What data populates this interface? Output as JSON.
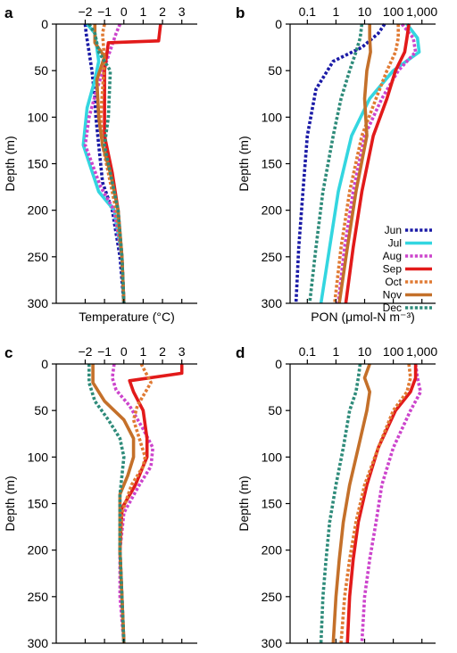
{
  "chart_data": [
    {
      "panel": "a",
      "type": "line",
      "xlabel": "Temperature (°C)",
      "ylabel": "Depth (m)",
      "xscale": "linear",
      "xlim": [
        -3.5,
        3.8
      ],
      "ylim": [
        0,
        300
      ],
      "xticks": [
        -2,
        -1,
        0,
        1,
        2,
        3
      ],
      "xtick_labels": [
        "−2",
        "−1",
        "0",
        "1",
        "2",
        "3"
      ],
      "yticks": [
        0,
        50,
        100,
        150,
        200,
        250,
        300
      ],
      "series": [
        {
          "name": "Jun",
          "color": "#1a1aa6",
          "dash": "dot",
          "x": [
            -2.0,
            -1.95,
            -1.8,
            -1.65,
            -1.5,
            -1.45,
            -1.1,
            -0.6,
            -0.2,
            0.0
          ],
          "y": [
            0,
            10,
            30,
            50,
            80,
            100,
            170,
            200,
            250,
            300
          ]
        },
        {
          "name": "Jul",
          "color": "#33d6e0",
          "dash": "solid",
          "x": [
            -1.9,
            -1.5,
            -1.3,
            -1.5,
            -1.9,
            -2.1,
            -1.3,
            -0.5,
            -0.1,
            0.0
          ],
          "y": [
            0,
            10,
            40,
            60,
            90,
            130,
            180,
            200,
            250,
            300
          ]
        },
        {
          "name": "Aug",
          "color": "#cc44cc",
          "dash": "dot",
          "x": [
            -0.2,
            -0.4,
            -0.9,
            -1.4,
            -1.8,
            -2.0,
            -1.2,
            -0.5,
            -0.1,
            0.0
          ],
          "y": [
            0,
            10,
            40,
            70,
            100,
            130,
            175,
            200,
            250,
            300
          ]
        },
        {
          "name": "Sep",
          "color": "#e21a1a",
          "dash": "solid",
          "x": [
            1.9,
            1.8,
            -0.8,
            -1.0,
            -1.0,
            -1.0,
            -0.6,
            -0.3,
            -0.1,
            0.0
          ],
          "y": [
            0,
            18,
            20,
            50,
            90,
            120,
            160,
            200,
            250,
            300
          ]
        },
        {
          "name": "Oct",
          "color": "#e07a33",
          "dash": "dot",
          "x": [
            -1.0,
            -1.1,
            -1.0,
            -1.1,
            -1.2,
            -1.1,
            -0.8,
            -0.4,
            -0.1,
            0.0
          ],
          "y": [
            0,
            10,
            40,
            70,
            100,
            130,
            160,
            200,
            250,
            300
          ]
        },
        {
          "name": "Nov",
          "color": "#c4702a",
          "dash": "solid",
          "x": [
            -1.5,
            -1.5,
            -1.0,
            -1.4,
            -1.3,
            -1.1,
            -0.7,
            -0.3,
            -0.1,
            0.0
          ],
          "y": [
            0,
            20,
            35,
            60,
            100,
            130,
            160,
            200,
            250,
            300
          ]
        },
        {
          "name": "Dec",
          "color": "#2e8b7a",
          "dash": "dot",
          "x": [
            -1.8,
            -1.5,
            -1.3,
            -0.7,
            -0.8,
            -1.0,
            -0.7,
            -0.3,
            -0.1,
            0.0
          ],
          "y": [
            0,
            10,
            30,
            50,
            100,
            130,
            160,
            200,
            250,
            300
          ]
        }
      ]
    },
    {
      "panel": "b",
      "type": "line",
      "xlabel": "PON (μmol-N m⁻³)",
      "ylabel": "Depth (m)",
      "xscale": "log",
      "xlim": [
        0.025,
        3000
      ],
      "ylim": [
        0,
        300
      ],
      "xticks": [
        0.1,
        1,
        10,
        100,
        1000
      ],
      "xtick_labels": [
        "0.1",
        "1",
        "10",
        "100",
        "1,000"
      ],
      "yticks": [
        0,
        50,
        100,
        150,
        200,
        250,
        300
      ],
      "legend": {
        "placement": "right",
        "entries": [
          "Jun",
          "Jul",
          "Aug",
          "Sep",
          "Oct",
          "Nov",
          "Dec"
        ]
      },
      "series": [
        {
          "name": "Jun",
          "color": "#1a1aa6",
          "dash": "dot",
          "x": [
            50,
            30,
            8,
            0.8,
            0.2,
            0.1,
            0.07,
            0.05,
            0.04
          ],
          "y": [
            0,
            10,
            25,
            40,
            70,
            120,
            180,
            240,
            300
          ]
        },
        {
          "name": "Jul",
          "color": "#33d6e0",
          "dash": "solid",
          "x": [
            300,
            700,
            800,
            100,
            15,
            3.5,
            1.2,
            0.6,
            0.3
          ],
          "y": [
            0,
            15,
            30,
            50,
            80,
            120,
            180,
            240,
            300
          ]
        },
        {
          "name": "Aug",
          "color": "#cc44cc",
          "dash": "dot",
          "x": [
            200,
            500,
            600,
            150,
            40,
            10,
            4,
            2,
            1.2
          ],
          "y": [
            0,
            15,
            30,
            50,
            80,
            120,
            180,
            240,
            300
          ]
        },
        {
          "name": "Sep",
          "color": "#e21a1a",
          "dash": "solid",
          "x": [
            350,
            300,
            250,
            120,
            60,
            20,
            8,
            4,
            2.2
          ],
          "y": [
            0,
            15,
            30,
            50,
            80,
            120,
            180,
            240,
            300
          ]
        },
        {
          "name": "Oct",
          "color": "#e07a33",
          "dash": "dot",
          "x": [
            150,
            150,
            120,
            60,
            25,
            8,
            3,
            1.5,
            0.9
          ],
          "y": [
            0,
            15,
            30,
            50,
            80,
            120,
            180,
            240,
            300
          ]
        },
        {
          "name": "Nov",
          "color": "#c4702a",
          "dash": "solid",
          "x": [
            15,
            15,
            16,
            12,
            10,
            12,
            5,
            2.5,
            1.3
          ],
          "y": [
            0,
            15,
            30,
            50,
            80,
            120,
            180,
            240,
            300
          ]
        },
        {
          "name": "Dec",
          "color": "#2e8b7a",
          "dash": "dot",
          "x": [
            8,
            7,
            5,
            3,
            1.5,
            0.8,
            0.35,
            0.2,
            0.12
          ],
          "y": [
            0,
            15,
            30,
            50,
            80,
            120,
            180,
            240,
            300
          ]
        }
      ]
    },
    {
      "panel": "c",
      "type": "line",
      "xlabel": "",
      "ylabel": "Depth (m)",
      "xscale": "linear",
      "xlim": [
        -3.5,
        3.8
      ],
      "ylim": [
        0,
        300
      ],
      "xticks": [
        -2,
        -1,
        0,
        1,
        2,
        3
      ],
      "xtick_labels": [
        "−2",
        "−1",
        "0",
        "1",
        "2",
        "3"
      ],
      "yticks": [
        0,
        50,
        100,
        150,
        200,
        250,
        300
      ],
      "series": [
        {
          "name": "Aug",
          "color": "#cc44cc",
          "dash": "dot",
          "x": [
            -0.5,
            -0.6,
            -0.4,
            0.3,
            1.0,
            1.5,
            1.4,
            0.8,
            0.0,
            -0.2,
            -0.2,
            0.0
          ],
          "y": [
            0,
            15,
            28,
            45,
            70,
            90,
            110,
            130,
            160,
            200,
            250,
            300
          ]
        },
        {
          "name": "Sep",
          "color": "#e21a1a",
          "dash": "solid",
          "x": [
            3.0,
            3.0,
            0.3,
            0.5,
            1.0,
            1.2,
            1.2,
            0.6,
            -0.1,
            -0.2,
            -0.1,
            0.0
          ],
          "y": [
            0,
            10,
            18,
            30,
            50,
            80,
            100,
            130,
            155,
            200,
            250,
            300
          ]
        },
        {
          "name": "Oct",
          "color": "#e07a33",
          "dash": "dot",
          "x": [
            0.9,
            1.4,
            0.7,
            0.5,
            0.8,
            1.1,
            1.0,
            0.4,
            -0.1,
            -0.2,
            -0.1,
            0.0
          ],
          "y": [
            0,
            20,
            45,
            60,
            80,
            100,
            110,
            130,
            160,
            200,
            250,
            300
          ]
        },
        {
          "name": "Nov",
          "color": "#c4702a",
          "dash": "solid",
          "x": [
            -1.6,
            -1.6,
            -1.0,
            0.0,
            0.5,
            0.5,
            0.2,
            -0.2,
            -0.2,
            -0.2,
            -0.1,
            0.0
          ],
          "y": [
            0,
            20,
            40,
            60,
            80,
            100,
            120,
            140,
            160,
            200,
            250,
            300
          ]
        },
        {
          "name": "Dec",
          "color": "#2e8b7a",
          "dash": "dot",
          "x": [
            -1.8,
            -1.8,
            -1.5,
            -0.8,
            -0.2,
            0.0,
            -0.1,
            -0.2,
            -0.2,
            -0.2,
            -0.1,
            0.0
          ],
          "y": [
            0,
            20,
            40,
            60,
            80,
            100,
            120,
            140,
            160,
            200,
            250,
            300
          ]
        }
      ]
    },
    {
      "panel": "d",
      "type": "line",
      "xlabel": "",
      "ylabel": "Depth (m)",
      "xscale": "log",
      "xlim": [
        0.025,
        3000
      ],
      "ylim": [
        0,
        300
      ],
      "xticks": [
        0.1,
        1,
        10,
        100,
        1000
      ],
      "xtick_labels": [
        "0.1",
        "1",
        "10",
        "100",
        "1,000"
      ],
      "yticks": [
        0,
        50,
        100,
        150,
        200,
        250,
        300
      ],
      "series": [
        {
          "name": "Aug",
          "color": "#cc44cc",
          "dash": "dot",
          "x": [
            600,
            700,
            900,
            400,
            100,
            40,
            25,
            15,
            10,
            8
          ],
          "y": [
            0,
            15,
            30,
            50,
            90,
            130,
            170,
            210,
            250,
            300
          ]
        },
        {
          "name": "Sep",
          "color": "#e21a1a",
          "dash": "solid",
          "x": [
            600,
            600,
            400,
            120,
            30,
            12,
            6,
            4,
            3,
            2.5
          ],
          "y": [
            0,
            15,
            30,
            50,
            90,
            130,
            170,
            210,
            250,
            300
          ]
        },
        {
          "name": "Oct",
          "color": "#e07a33",
          "dash": "dot",
          "x": [
            350,
            400,
            300,
            100,
            30,
            10,
            5,
            3,
            2,
            1.5
          ],
          "y": [
            0,
            15,
            30,
            50,
            90,
            130,
            170,
            210,
            250,
            300
          ]
        },
        {
          "name": "Nov",
          "color": "#c4702a",
          "dash": "solid",
          "x": [
            15,
            10,
            15,
            12,
            6,
            3,
            1.8,
            1.3,
            1.0,
            0.8
          ],
          "y": [
            0,
            15,
            30,
            50,
            90,
            130,
            170,
            210,
            250,
            300
          ]
        },
        {
          "name": "Dec",
          "color": "#2e8b7a",
          "dash": "dot",
          "x": [
            7,
            6,
            5,
            3,
            1.8,
            1.0,
            0.6,
            0.45,
            0.35,
            0.3
          ],
          "y": [
            0,
            15,
            30,
            50,
            90,
            130,
            170,
            210,
            250,
            300
          ]
        }
      ]
    }
  ]
}
